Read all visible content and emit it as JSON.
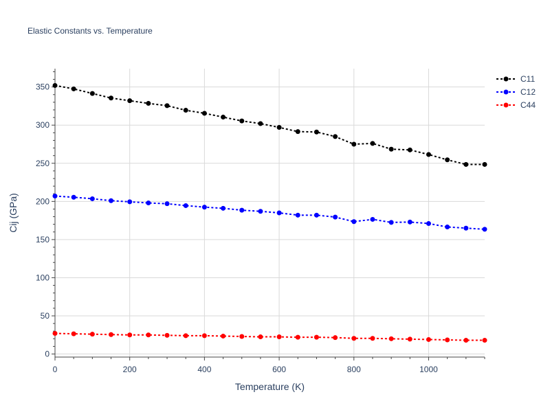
{
  "chart_data": {
    "type": "line",
    "title": "Elastic Constants vs. Temperature",
    "xlabel": "Temperature (K)",
    "ylabel": "Cij (GPa)",
    "xlim": [
      0,
      1150
    ],
    "ylim": [
      -4,
      374
    ],
    "xticks": [
      0,
      200,
      400,
      600,
      800,
      1000
    ],
    "yticks": [
      0,
      50,
      100,
      150,
      200,
      250,
      300,
      350
    ],
    "grid": true,
    "legend_position": "top-right",
    "x": [
      0,
      50,
      100,
      150,
      200,
      250,
      300,
      350,
      400,
      450,
      500,
      550,
      600,
      650,
      700,
      750,
      800,
      850,
      900,
      950,
      1000,
      1050,
      1100,
      1150
    ],
    "series": [
      {
        "name": "C11",
        "color": "#000000",
        "values": [
          352,
          347.5,
          341.5,
          335.5,
          332,
          328.5,
          325.5,
          319.5,
          315.5,
          310.5,
          305.5,
          302,
          297,
          291.5,
          291,
          285,
          275,
          276,
          268.5,
          267.5,
          261.5,
          254.5,
          248.5,
          248.5
        ]
      },
      {
        "name": "C12",
        "color": "#0000ff",
        "values": [
          207,
          205.5,
          203.5,
          201,
          199.5,
          198,
          197,
          194.5,
          192.5,
          191,
          188.5,
          187,
          185,
          182,
          182,
          179.5,
          173.5,
          176.5,
          172.5,
          173,
          171,
          166.5,
          165,
          163.5
        ]
      },
      {
        "name": "C44",
        "color": "#ff0000",
        "values": [
          27,
          26.5,
          26,
          25.5,
          25,
          25,
          24.5,
          24,
          24,
          23.5,
          23,
          22.5,
          22.5,
          22,
          22,
          21.5,
          20.5,
          20.5,
          20,
          19.5,
          19,
          18.5,
          18,
          18
        ]
      }
    ]
  }
}
